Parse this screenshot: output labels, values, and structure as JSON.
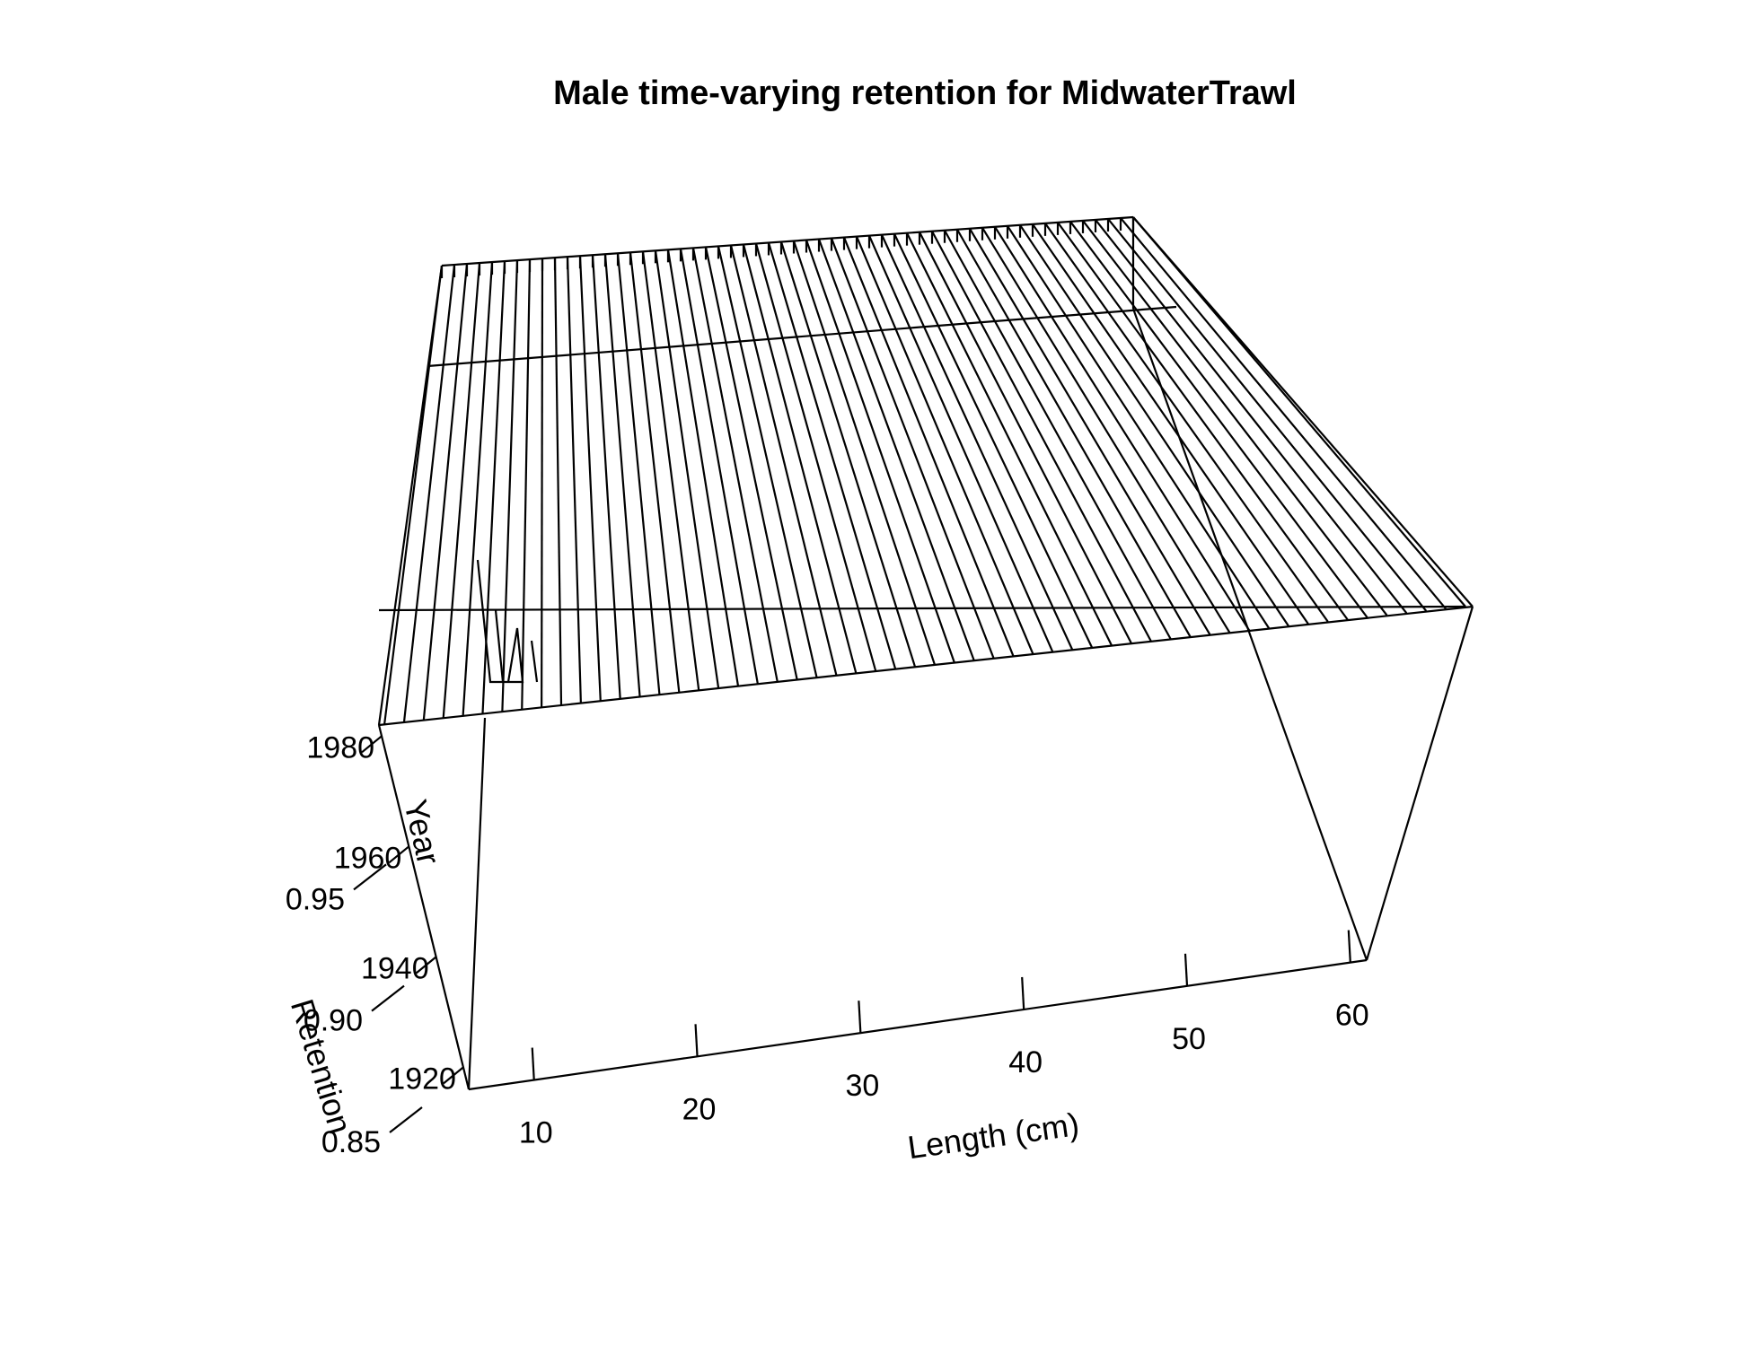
{
  "chart_data": {
    "type": "surface3d",
    "title": "Male time-varying retention for MidwaterTrawl",
    "xlabel": "Length (cm)",
    "ylabel": "Year",
    "zlabel": "Retention",
    "x_ticks": [
      "10",
      "20",
      "30",
      "40",
      "50",
      "60"
    ],
    "y_ticks": [
      "1920",
      "1940",
      "1960",
      "1980"
    ],
    "z_ticks": [
      "0.85",
      "0.90",
      "0.95"
    ],
    "xlim": [
      6,
      61
    ],
    "ylim": [
      1916,
      1982
    ],
    "zlim": [
      0.85,
      1.0
    ],
    "x": [
      6,
      7,
      8,
      9,
      10,
      11,
      12,
      13,
      14,
      15,
      16,
      17,
      18,
      19,
      20,
      21,
      22,
      23,
      24,
      25,
      26,
      27,
      28,
      29,
      30,
      31,
      32,
      33,
      34,
      35,
      36,
      37,
      38,
      39,
      40,
      41,
      42,
      43,
      44,
      45,
      46,
      47,
      48,
      49,
      50,
      51,
      52,
      53,
      54,
      55,
      56,
      57,
      58,
      59,
      60,
      61
    ],
    "surface": {
      "retention_flat": 1.0,
      "dip_region": {
        "x_from": 6,
        "x_to": 9,
        "retention_min": 0.97
      }
    },
    "grid": false,
    "legend": "none"
  }
}
